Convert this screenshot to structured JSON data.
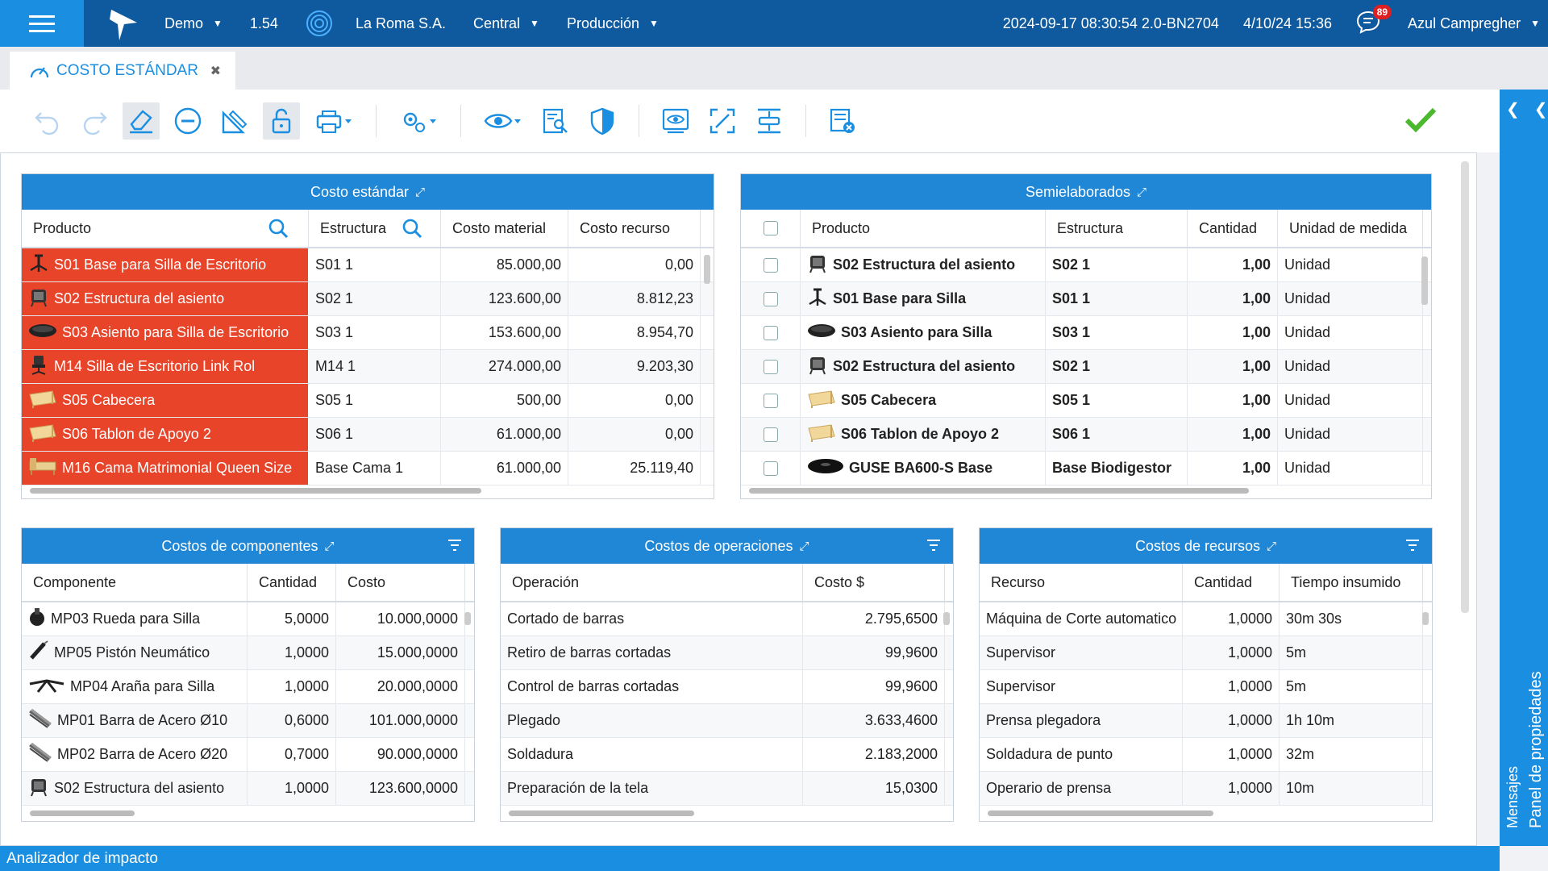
{
  "topbar": {
    "env": "Demo",
    "version": "1.54",
    "company": "La Roma S.A.",
    "branch": "Central",
    "module": "Producción",
    "build": "2024-09-17 08:30:54 2.0-BN2704",
    "date": "4/10/24 15:36",
    "notifications": "89",
    "user": "Azul Campregher"
  },
  "tab": {
    "label": "COSTO ESTÁNDAR"
  },
  "right_panel": {
    "properties": "Panel de propiedades",
    "messages": "Mensajes"
  },
  "statusbar": {
    "label": "Analizador de impacto"
  },
  "standard_cost": {
    "title": "Costo estándar",
    "columns": [
      "Producto",
      "Estructura",
      "Costo material",
      "Costo recurso"
    ],
    "rows": [
      {
        "icon": "chair-base-icon",
        "product": "S01 Base para Silla de Escritorio",
        "structure": "S01 1",
        "material": "85.000,00",
        "resource": "0,00"
      },
      {
        "icon": "seat-frame-icon",
        "product": "S02 Estructura del asiento",
        "structure": "S02 1",
        "material": "123.600,00",
        "resource": "8.812,23"
      },
      {
        "icon": "seat-cushion-icon",
        "product": "S03 Asiento para Silla de Escritorio",
        "structure": "S03 1",
        "material": "153.600,00",
        "resource": "8.954,70"
      },
      {
        "icon": "office-chair-icon",
        "product": "M14 Silla de Escritorio Link Rol",
        "structure": "M14 1",
        "material": "274.000,00",
        "resource": "9.203,30"
      },
      {
        "icon": "wood-board-icon",
        "product": "S05 Cabecera",
        "structure": "S05 1",
        "material": "500,00",
        "resource": "0,00"
      },
      {
        "icon": "wood-board-icon",
        "product": "S06 Tablon de Apoyo 2",
        "structure": "S06 1",
        "material": "61.000,00",
        "resource": "0,00"
      },
      {
        "icon": "bed-icon",
        "product": "M16 Cama Matrimonial Queen Size",
        "structure": "Base Cama 1",
        "material": "61.000,00",
        "resource": "25.119,40"
      }
    ]
  },
  "semi": {
    "title": "Semielaborados",
    "columns": [
      "Producto",
      "Estructura",
      "Cantidad",
      "Unidad de medida"
    ],
    "rows": [
      {
        "icon": "seat-frame-icon",
        "product": "S02 Estructura del asiento",
        "structure": "S02 1",
        "qty": "1,00",
        "unit": "Unidad"
      },
      {
        "icon": "chair-base-icon",
        "product": "S01 Base para Silla",
        "structure": "S01 1",
        "qty": "1,00",
        "unit": "Unidad"
      },
      {
        "icon": "seat-cushion-icon",
        "product": "S03 Asiento para Silla",
        "structure": "S03 1",
        "qty": "1,00",
        "unit": "Unidad"
      },
      {
        "icon": "seat-frame-icon",
        "product": "S02 Estructura del asiento",
        "structure": "S02 1",
        "qty": "1,00",
        "unit": "Unidad"
      },
      {
        "icon": "wood-board-icon",
        "product": "S05 Cabecera",
        "structure": "S05 1",
        "qty": "1,00",
        "unit": "Unidad"
      },
      {
        "icon": "wood-board-icon",
        "product": "S06 Tablon de Apoyo 2",
        "structure": "S06 1",
        "qty": "1,00",
        "unit": "Unidad"
      },
      {
        "icon": "biodigester-base-icon",
        "product": "GUSE BA600-S Base",
        "structure": "Base Biodigestor",
        "qty": "1,00",
        "unit": "Unidad"
      }
    ]
  },
  "components": {
    "title": "Costos de componentes",
    "columns": [
      "Componente",
      "Cantidad",
      "Costo"
    ],
    "rows": [
      {
        "icon": "wheel-icon",
        "name": "MP03 Rueda para Silla",
        "qty": "5,0000",
        "cost": "10.000,0000"
      },
      {
        "icon": "piston-icon",
        "name": "MP05 Pistón Neumático",
        "qty": "1,0000",
        "cost": "15.000,0000"
      },
      {
        "icon": "spider-base-icon",
        "name": "MP04 Araña para Silla",
        "qty": "1,0000",
        "cost": "20.000,0000"
      },
      {
        "icon": "steel-bar-icon",
        "name": "MP01 Barra de Acero Ø10",
        "qty": "0,6000",
        "cost": "101.000,0000"
      },
      {
        "icon": "steel-bar-icon",
        "name": "MP02 Barra de Acero Ø20",
        "qty": "0,7000",
        "cost": "90.000,0000"
      },
      {
        "icon": "seat-frame-icon",
        "name": "S02 Estructura del asiento",
        "qty": "1,0000",
        "cost": "123.600,0000"
      }
    ]
  },
  "operations": {
    "title": "Costos de operaciones",
    "columns": [
      "Operación",
      "Costo $"
    ],
    "rows": [
      {
        "name": "Cortado de barras",
        "cost": "2.795,6500"
      },
      {
        "name": "Retiro de barras cortadas",
        "cost": "99,9600"
      },
      {
        "name": "Control de barras cortadas",
        "cost": "99,9600"
      },
      {
        "name": "Plegado",
        "cost": "3.633,4600"
      },
      {
        "name": "Soldadura",
        "cost": "2.183,2000"
      },
      {
        "name": "Preparación de la tela",
        "cost": "15,0300"
      }
    ]
  },
  "resources": {
    "title": "Costos de recursos",
    "columns": [
      "Recurso",
      "Cantidad",
      "Tiempo insumido"
    ],
    "rows": [
      {
        "name": "Máquina de Corte automatico",
        "qty": "1,0000",
        "time": "30m 30s"
      },
      {
        "name": "Supervisor",
        "qty": "1,0000",
        "time": "5m"
      },
      {
        "name": "Supervisor",
        "qty": "1,0000",
        "time": "5m"
      },
      {
        "name": "Prensa plegadora",
        "qty": "1,0000",
        "time": "1h 10m"
      },
      {
        "name": "Soldadura de punto",
        "qty": "1,0000",
        "time": "32m"
      },
      {
        "name": "Operario de prensa",
        "qty": "1,0000",
        "time": "10m"
      }
    ]
  }
}
